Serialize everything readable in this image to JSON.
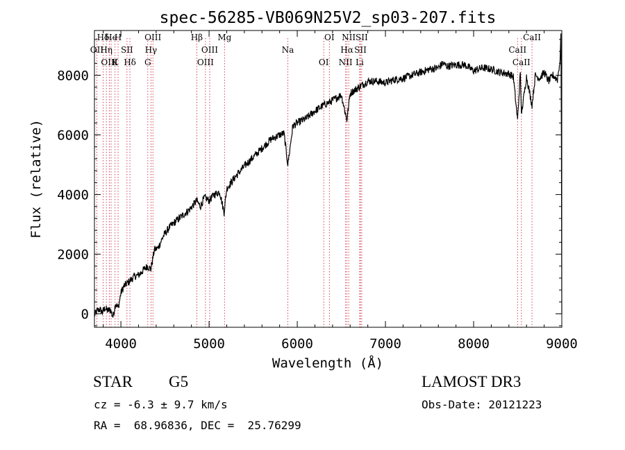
{
  "chart_data": {
    "type": "line",
    "title": "spec-56285-VB069N25V2_sp03-207.fits",
    "xlabel": "Wavelength (Å)",
    "ylabel": "Flux (relative)",
    "xlim": [
      3700,
      9000
    ],
    "ylim": [
      -450,
      9500
    ],
    "x_ticks": [
      4000,
      5000,
      6000,
      7000,
      8000,
      9000
    ],
    "y_ticks": [
      0,
      2000,
      4000,
      6000,
      8000
    ],
    "series": [
      {
        "name": "spectrum",
        "x": [
          3700,
          3730,
          3760,
          3790,
          3820,
          3850,
          3880,
          3910,
          3940,
          3970,
          4000,
          4030,
          4060,
          4100,
          4150,
          4200,
          4250,
          4300,
          4340,
          4380,
          4420,
          4480,
          4550,
          4620,
          4700,
          4780,
          4860,
          4900,
          4950,
          5000,
          5060,
          5120,
          5170,
          5200,
          5250,
          5300,
          5400,
          5500,
          5600,
          5700,
          5800,
          5850,
          5893,
          5950,
          6000,
          6100,
          6200,
          6300,
          6400,
          6500,
          6563,
          6600,
          6700,
          6800,
          6900,
          7000,
          7100,
          7200,
          7300,
          7400,
          7500,
          7600,
          7650,
          7700,
          7800,
          7900,
          8000,
          8100,
          8200,
          8300,
          8400,
          8450,
          8498,
          8530,
          8542,
          8600,
          8662,
          8700,
          8750,
          8800,
          8850,
          8900,
          8950,
          8980,
          8990,
          8995,
          9000
        ],
        "y": [
          -50,
          100,
          150,
          50,
          200,
          100,
          150,
          -100,
          350,
          200,
          700,
          900,
          1000,
          1100,
          1250,
          1300,
          1450,
          1600,
          1500,
          2150,
          2200,
          2600,
          2900,
          3100,
          3300,
          3500,
          3800,
          3600,
          3900,
          3800,
          4000,
          4100,
          3400,
          4200,
          4400,
          4600,
          4950,
          5250,
          5550,
          5850,
          6000,
          6050,
          5000,
          6300,
          6400,
          6550,
          6800,
          7000,
          7150,
          7350,
          6500,
          7400,
          7600,
          7800,
          7800,
          7750,
          7850,
          7900,
          8000,
          8100,
          8200,
          8250,
          8400,
          8300,
          8350,
          8350,
          8150,
          8250,
          8200,
          8100,
          8050,
          7950,
          6500,
          8100,
          6700,
          7950,
          7000,
          8000,
          7900,
          8100,
          7800,
          8000,
          7850,
          8500,
          9400,
          6000,
          0
        ]
      }
    ],
    "spectral_lines": [
      {
        "label": "Hδ",
        "x": 3798
      },
      {
        "label": "OII",
        "x": 3727
      },
      {
        "label": "OIII",
        "x": 3869
      },
      {
        "label": "He",
        "x": 3889
      },
      {
        "label": "Hη",
        "x": 3835
      },
      {
        "label": "K",
        "x": 3934
      },
      {
        "label": "H",
        "x": 3968
      },
      {
        "label": "SII",
        "x": 4069
      },
      {
        "label": "Hδ",
        "x": 4102
      },
      {
        "label": "OIII",
        "x": 4363
      },
      {
        "label": "Hγ",
        "x": 4341
      },
      {
        "label": "G",
        "x": 4305
      },
      {
        "label": "Hβ",
        "x": 4861
      },
      {
        "label": "OIII",
        "x": 5007
      },
      {
        "label": "OIII",
        "x": 4959
      },
      {
        "label": "Mg",
        "x": 5175
      },
      {
        "label": "Na",
        "x": 5893
      },
      {
        "label": "OI",
        "x": 6300
      },
      {
        "label": "OI",
        "x": 6364
      },
      {
        "label": "Hα",
        "x": 6563
      },
      {
        "label": "NII",
        "x": 6548
      },
      {
        "label": "NII",
        "x": 6583
      },
      {
        "label": "SII",
        "x": 6716
      },
      {
        "label": "Li",
        "x": 6708
      },
      {
        "label": "SII",
        "x": 6731
      },
      {
        "label": "CaII",
        "x": 8498
      },
      {
        "label": "CaII",
        "x": 8542
      },
      {
        "label": "CaII",
        "x": 8662
      }
    ]
  },
  "info": {
    "object_class": "STAR",
    "subclass": "G5",
    "survey": "LAMOST DR3",
    "cz": "cz = -6.3 ± 9.7 km/s",
    "obs_date": "Obs-Date: 20121223",
    "coords": "RA =  68.96836, DEC =  25.76299"
  }
}
